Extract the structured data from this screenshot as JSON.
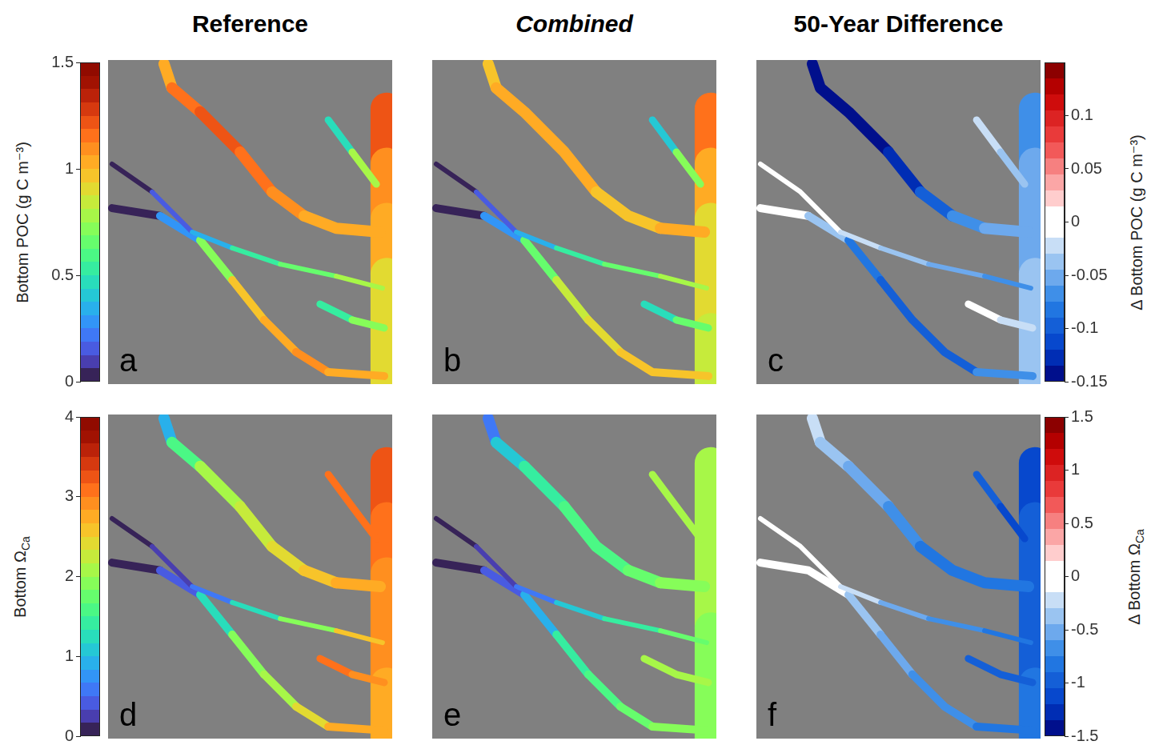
{
  "chart_data": [
    {
      "type": "map",
      "panel": "a",
      "title": "Reference",
      "tick_labels": false,
      "xlim": [
        0,
        1
      ],
      "ylim": [
        0,
        1
      ],
      "clim": [
        0,
        1.5
      ],
      "colorbar": {
        "label": "Bottom POC (g C m⁻³)",
        "ticks": [
          0,
          0.5,
          1,
          1.5
        ]
      },
      "channels": [
        {
          "x": [
            0.197,
            0.225,
            0.324,
            0.465,
            0.577,
            0.69,
            0.803,
            0.958
          ],
          "y": [
            0.988,
            0.914,
            0.84,
            0.716,
            0.593,
            0.519,
            0.481,
            0.469
          ],
          "values": [
            1.0,
            1.1,
            1.2,
            1.2,
            1.15,
            1.05,
            1.0,
            1.1
          ]
        },
        {
          "x": [
            0.014,
            0.155,
            0.296,
            0.437,
            0.606,
            0.803,
            0.966
          ],
          "y": [
            0.679,
            0.593,
            0.469,
            0.42,
            0.37,
            0.333,
            0.296
          ],
          "values": [
            0.05,
            0.05,
            0.2,
            0.5,
            0.6,
            0.75,
            0.85
          ]
        },
        {
          "x": [
            0.014,
            0.183,
            0.324,
            0.437,
            0.549,
            0.662,
            0.775,
            0.972
          ],
          "y": [
            0.543,
            0.519,
            0.444,
            0.321,
            0.198,
            0.099,
            0.037,
            0.025
          ],
          "values": [
            0.05,
            0.05,
            0.5,
            0.9,
            1.0,
            1.05,
            1.1,
            0.95
          ]
        },
        {
          "x": [
            0.746,
            0.859,
            0.972
          ],
          "y": [
            0.247,
            0.198,
            0.173
          ],
          "values": [
            0.4,
            0.6,
            0.8
          ]
        },
        {
          "x": [
            0.775,
            0.859,
            0.944
          ],
          "y": [
            0.815,
            0.716,
            0.617
          ],
          "values": [
            0.3,
            0.6,
            0.9
          ]
        },
        {
          "x": [
            0.98,
            0.98,
            0.98,
            0.98,
            0.98,
            0.98
          ],
          "y": [
            0.85,
            0.68,
            0.51,
            0.34,
            0.17,
            0.0
          ],
          "values": [
            1.3,
            1.15,
            1.05,
            0.95,
            0.9,
            0.85
          ]
        }
      ]
    },
    {
      "type": "map",
      "panel": "b",
      "title": "Combined",
      "tick_labels": false,
      "xlim": [
        0,
        1
      ],
      "ylim": [
        0,
        1
      ],
      "clim": [
        0,
        1.5
      ],
      "channels": [
        {
          "x": [
            0.197,
            0.225,
            0.324,
            0.465,
            0.577,
            0.69,
            0.803,
            0.958
          ],
          "y": [
            0.988,
            0.914,
            0.84,
            0.716,
            0.593,
            0.519,
            0.481,
            0.469
          ],
          "values": [
            0.9,
            1.0,
            1.05,
            1.05,
            1.0,
            0.95,
            0.95,
            1.05
          ]
        },
        {
          "x": [
            0.014,
            0.155,
            0.296,
            0.437,
            0.606,
            0.803,
            0.966
          ],
          "y": [
            0.679,
            0.593,
            0.469,
            0.42,
            0.37,
            0.333,
            0.296
          ],
          "values": [
            0.05,
            0.05,
            0.2,
            0.45,
            0.55,
            0.7,
            0.8
          ]
        },
        {
          "x": [
            0.014,
            0.183,
            0.324,
            0.437,
            0.549,
            0.662,
            0.775,
            0.972
          ],
          "y": [
            0.543,
            0.519,
            0.444,
            0.321,
            0.198,
            0.099,
            0.037,
            0.025
          ],
          "values": [
            0.05,
            0.05,
            0.45,
            0.8,
            0.9,
            0.95,
            1.0,
            0.9
          ]
        },
        {
          "x": [
            0.746,
            0.859,
            0.972
          ],
          "y": [
            0.247,
            0.198,
            0.173
          ],
          "values": [
            0.4,
            0.55,
            0.75
          ]
        },
        {
          "x": [
            0.775,
            0.859,
            0.944
          ],
          "y": [
            0.815,
            0.716,
            0.617
          ],
          "values": [
            0.3,
            0.55,
            0.85
          ]
        },
        {
          "x": [
            0.98,
            0.98,
            0.98,
            0.98,
            0.98,
            0.98
          ],
          "y": [
            0.85,
            0.68,
            0.51,
            0.34,
            0.17,
            0.0
          ],
          "values": [
            1.2,
            1.05,
            0.95,
            0.9,
            0.85,
            0.8
          ]
        }
      ]
    },
    {
      "type": "map",
      "panel": "c",
      "title": "50-Year Difference",
      "tick_labels": false,
      "xlim": [
        0,
        1
      ],
      "ylim": [
        0,
        1
      ],
      "clim": [
        -0.15,
        0.15
      ],
      "colorbar": {
        "label": "Δ Bottom POC (g C m⁻³)",
        "ticks": [
          -0.15,
          -0.1,
          -0.05,
          0,
          0.05,
          0.1
        ]
      },
      "channels": [
        {
          "x": [
            0.197,
            0.225,
            0.324,
            0.465,
            0.577,
            0.69,
            0.803,
            0.958
          ],
          "y": [
            0.988,
            0.914,
            0.84,
            0.716,
            0.593,
            0.519,
            0.481,
            0.469
          ],
          "values": [
            -0.15,
            -0.15,
            -0.15,
            -0.14,
            -0.12,
            -0.08,
            -0.06,
            -0.05
          ]
        },
        {
          "x": [
            0.014,
            0.155,
            0.296,
            0.437,
            0.606,
            0.803,
            0.966
          ],
          "y": [
            0.679,
            0.593,
            0.469,
            0.42,
            0.37,
            0.333,
            0.296
          ],
          "values": [
            0,
            0,
            -0.02,
            -0.04,
            -0.05,
            -0.06,
            -0.07
          ]
        },
        {
          "x": [
            0.014,
            0.183,
            0.324,
            0.437,
            0.549,
            0.662,
            0.775,
            0.972
          ],
          "y": [
            0.543,
            0.519,
            0.444,
            0.321,
            0.198,
            0.099,
            0.037,
            0.025
          ],
          "values": [
            0,
            0,
            -0.08,
            -0.1,
            -0.1,
            -0.1,
            -0.09,
            -0.06
          ]
        },
        {
          "x": [
            0.746,
            0.859,
            0.972
          ],
          "y": [
            0.247,
            0.198,
            0.173
          ],
          "values": [
            -0.01,
            -0.02,
            -0.04
          ]
        },
        {
          "x": [
            0.775,
            0.859,
            0.944
          ],
          "y": [
            0.815,
            0.716,
            0.617
          ],
          "values": [
            -0.02,
            -0.03,
            -0.05
          ]
        },
        {
          "x": [
            0.98,
            0.98,
            0.98,
            0.98,
            0.98,
            0.98
          ],
          "y": [
            0.85,
            0.68,
            0.51,
            0.34,
            0.17,
            0.0
          ],
          "values": [
            -0.08,
            -0.06,
            -0.05,
            -0.05,
            -0.04,
            -0.04
          ]
        }
      ]
    },
    {
      "type": "map",
      "panel": "d",
      "tick_labels": false,
      "xlim": [
        0,
        1
      ],
      "ylim": [
        0,
        1
      ],
      "clim": [
        0,
        4
      ],
      "colorbar": {
        "label": "Bottom ΩCa",
        "ticks": [
          0,
          1,
          2,
          3,
          4
        ]
      },
      "channels": [
        {
          "x": [
            0.197,
            0.225,
            0.324,
            0.465,
            0.577,
            0.69,
            0.803,
            0.958
          ],
          "y": [
            0.988,
            0.914,
            0.84,
            0.716,
            0.593,
            0.519,
            0.481,
            0.469
          ],
          "values": [
            0.6,
            1.2,
            1.8,
            2.2,
            2.4,
            2.5,
            2.6,
            2.8
          ]
        },
        {
          "x": [
            0.014,
            0.155,
            0.296,
            0.437,
            0.606,
            0.803,
            0.966
          ],
          "y": [
            0.679,
            0.593,
            0.469,
            0.42,
            0.37,
            0.333,
            0.296
          ],
          "values": [
            0.1,
            0.1,
            0.3,
            1.0,
            1.6,
            2.2,
            2.8
          ]
        },
        {
          "x": [
            0.014,
            0.183,
            0.324,
            0.437,
            0.549,
            0.662,
            0.775,
            0.972
          ],
          "y": [
            0.543,
            0.519,
            0.444,
            0.321,
            0.198,
            0.099,
            0.037,
            0.025
          ],
          "values": [
            0.1,
            0.1,
            0.8,
            1.8,
            2.0,
            2.2,
            2.6,
            2.8
          ]
        },
        {
          "x": [
            0.746,
            0.859,
            0.972
          ],
          "y": [
            0.247,
            0.198,
            0.173
          ],
          "values": [
            3.1,
            3.0,
            2.9
          ]
        },
        {
          "x": [
            0.775,
            0.859,
            0.944
          ],
          "y": [
            0.815,
            0.716,
            0.617
          ],
          "values": [
            3.1,
            3.2,
            3.1
          ]
        },
        {
          "x": [
            0.98,
            0.98,
            0.98,
            0.98,
            0.98,
            0.98
          ],
          "y": [
            0.85,
            0.68,
            0.51,
            0.34,
            0.17,
            0.0
          ],
          "values": [
            3.3,
            3.2,
            3.0,
            2.9,
            2.8,
            2.7
          ]
        }
      ]
    },
    {
      "type": "map",
      "panel": "e",
      "tick_labels": false,
      "xlim": [
        0,
        1
      ],
      "ylim": [
        0,
        1
      ],
      "clim": [
        0,
        4
      ],
      "channels": [
        {
          "x": [
            0.197,
            0.225,
            0.324,
            0.465,
            0.577,
            0.69,
            0.803,
            0.958
          ],
          "y": [
            0.988,
            0.914,
            0.84,
            0.716,
            0.593,
            0.519,
            0.481,
            0.469
          ],
          "values": [
            0.2,
            0.9,
            1.3,
            1.5,
            1.6,
            1.7,
            1.8,
            2.0
          ]
        },
        {
          "x": [
            0.014,
            0.155,
            0.296,
            0.437,
            0.606,
            0.803,
            0.966
          ],
          "y": [
            0.679,
            0.593,
            0.469,
            0.42,
            0.37,
            0.333,
            0.296
          ],
          "values": [
            0.1,
            0.1,
            0.3,
            0.8,
            1.2,
            1.6,
            2.0
          ]
        },
        {
          "x": [
            0.014,
            0.183,
            0.324,
            0.437,
            0.549,
            0.662,
            0.775,
            0.972
          ],
          "y": [
            0.543,
            0.519,
            0.444,
            0.321,
            0.198,
            0.099,
            0.037,
            0.025
          ],
          "values": [
            0.1,
            0.1,
            0.6,
            1.3,
            1.4,
            1.6,
            1.8,
            2.0
          ]
        },
        {
          "x": [
            0.746,
            0.859,
            0.972
          ],
          "y": [
            0.247,
            0.198,
            0.173
          ],
          "values": [
            2.0,
            2.0,
            2.0
          ]
        },
        {
          "x": [
            0.775,
            0.859,
            0.944
          ],
          "y": [
            0.815,
            0.716,
            0.617
          ],
          "values": [
            2.0,
            2.1,
            2.1
          ]
        },
        {
          "x": [
            0.98,
            0.98,
            0.98,
            0.98,
            0.98,
            0.98
          ],
          "y": [
            0.85,
            0.68,
            0.51,
            0.34,
            0.17,
            0.0
          ],
          "values": [
            2.2,
            2.1,
            2.0,
            2.0,
            1.9,
            1.9
          ]
        }
      ]
    },
    {
      "type": "map",
      "panel": "f",
      "tick_labels": false,
      "xlim": [
        0,
        1
      ],
      "ylim": [
        0,
        1
      ],
      "clim": [
        -1.5,
        1.5
      ],
      "colorbar": {
        "label": "Δ Bottom ΩCa",
        "ticks": [
          -1.5,
          -1,
          -0.5,
          0,
          0.5,
          1,
          1.5
        ]
      },
      "channels": [
        {
          "x": [
            0.197,
            0.225,
            0.324,
            0.465,
            0.577,
            0.69,
            0.803,
            0.958
          ],
          "y": [
            0.988,
            0.914,
            0.84,
            0.716,
            0.593,
            0.519,
            0.481,
            0.469
          ],
          "values": [
            -0.1,
            -0.3,
            -0.5,
            -0.7,
            -0.8,
            -0.8,
            -0.8,
            -0.8
          ]
        },
        {
          "x": [
            0.014,
            0.155,
            0.296,
            0.437,
            0.606,
            0.803,
            0.966
          ],
          "y": [
            0.679,
            0.593,
            0.469,
            0.42,
            0.37,
            0.333,
            0.296
          ],
          "values": [
            0,
            0,
            -0.05,
            -0.4,
            -0.6,
            -0.8,
            -0.9
          ]
        },
        {
          "x": [
            0.014,
            0.183,
            0.324,
            0.437,
            0.549,
            0.662,
            0.775,
            0.972
          ],
          "y": [
            0.543,
            0.519,
            0.444,
            0.321,
            0.198,
            0.099,
            0.037,
            0.025
          ],
          "values": [
            0,
            0,
            -0.2,
            -0.5,
            -0.6,
            -0.7,
            -0.8,
            -0.8
          ]
        },
        {
          "x": [
            0.746,
            0.859,
            0.972
          ],
          "y": [
            0.247,
            0.198,
            0.173
          ],
          "values": [
            -1.0,
            -1.0,
            -1.0
          ]
        },
        {
          "x": [
            0.775,
            0.859,
            0.944
          ],
          "y": [
            0.815,
            0.716,
            0.617
          ],
          "values": [
            -1.0,
            -1.1,
            -1.1
          ]
        },
        {
          "x": [
            0.98,
            0.98,
            0.98,
            0.98,
            0.98,
            0.98
          ],
          "y": [
            0.85,
            0.68,
            0.51,
            0.34,
            0.17,
            0.0
          ],
          "values": [
            -1.1,
            -1.1,
            -1.0,
            -1.0,
            -0.9,
            -0.8
          ]
        }
      ]
    }
  ]
}
